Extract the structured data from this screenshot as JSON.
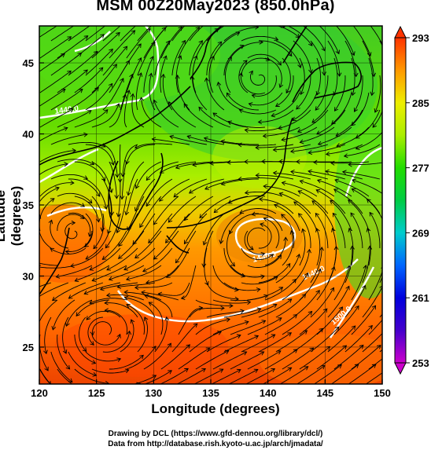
{
  "title": "MSM 00Z20May2023 (850.0hPa)",
  "x_axis": {
    "label": "Longitude (degrees)",
    "ticks": [
      120,
      125,
      130,
      135,
      140,
      145,
      150
    ],
    "range": [
      120,
      150
    ]
  },
  "y_axis": {
    "label": "Latitude  (degrees)",
    "ticks": [
      25,
      30,
      35,
      40,
      45
    ],
    "range": [
      22.4,
      47.6
    ]
  },
  "colorbar": {
    "ticks": [
      253,
      261,
      269,
      277,
      285,
      293
    ],
    "range": [
      253,
      293
    ],
    "stops": [
      {
        "value": 253,
        "color": "#cc00cc"
      },
      {
        "value": 257,
        "color": "#4400cc"
      },
      {
        "value": 261,
        "color": "#0000dd"
      },
      {
        "value": 265,
        "color": "#0066ff"
      },
      {
        "value": 269,
        "color": "#00cccc"
      },
      {
        "value": 273,
        "color": "#00cc44"
      },
      {
        "value": 277,
        "color": "#22dd00"
      },
      {
        "value": 281,
        "color": "#aaee00"
      },
      {
        "value": 285,
        "color": "#eeee00"
      },
      {
        "value": 289,
        "color": "#ff9900"
      },
      {
        "value": 293,
        "color": "#ff3300"
      }
    ]
  },
  "contour_labels": [
    "1440.0",
    "1440.0",
    "1440.0",
    "1500.0"
  ],
  "credits": {
    "line1": "Drawing by DCL (https://www.gfd-dennou.org/library/dcl/)",
    "line2": "Data from http://database.rish.kyoto-u.ac.jp/arch/jmadata/"
  }
}
